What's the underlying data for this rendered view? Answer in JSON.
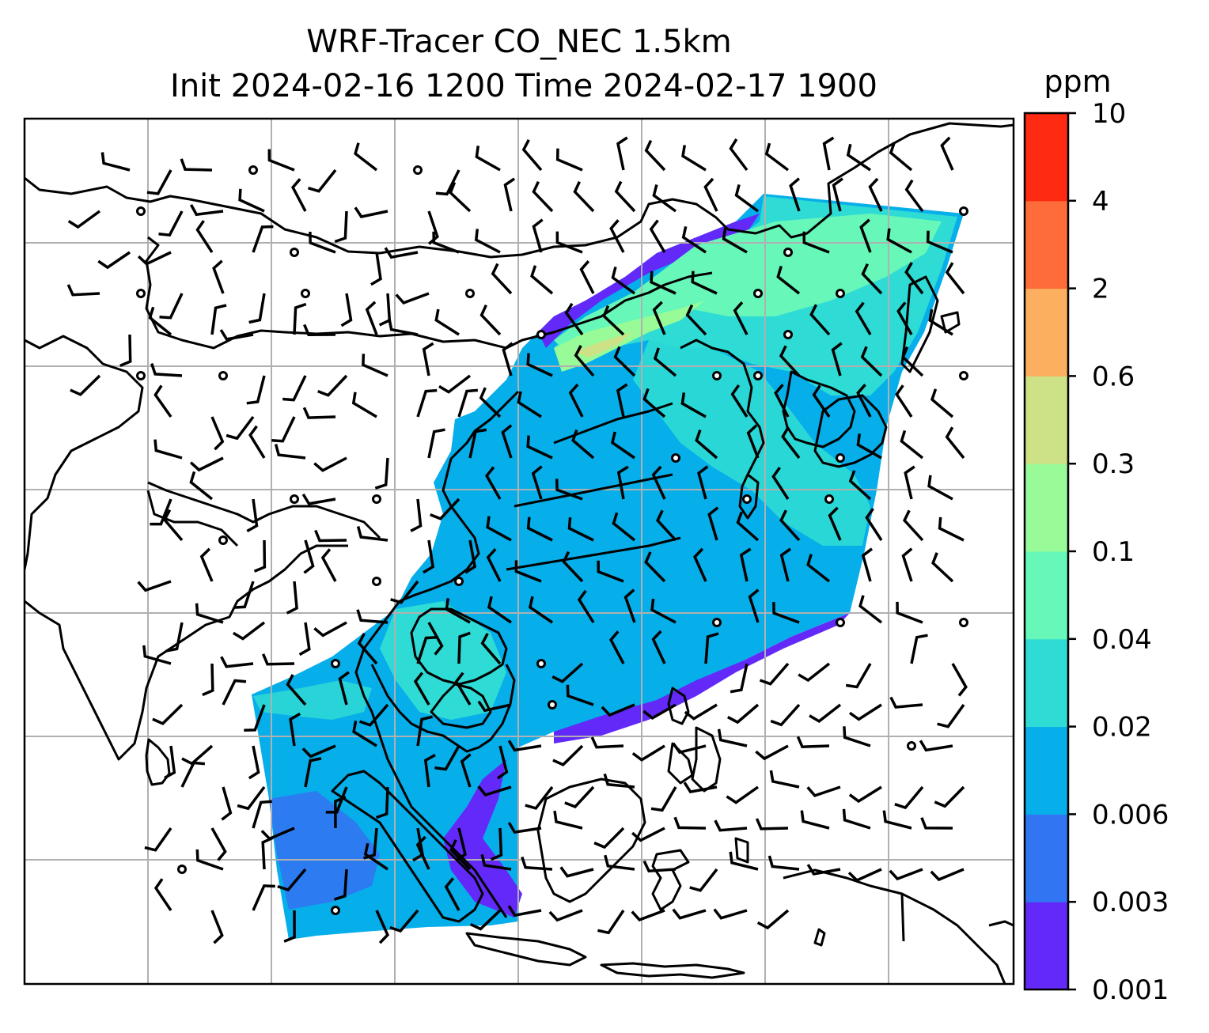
{
  "title": {
    "line1": "WRF-Tracer CO_NEC 1.5km",
    "line2": "Init 2024-02-16 1200 Time 2024-02-17 1900"
  },
  "colorbar": {
    "unit": "ppm",
    "levels": [
      "0.001",
      "0.003",
      "0.006",
      "0.02",
      "0.04",
      "0.1",
      "0.3",
      "0.6",
      "2",
      "4",
      "10"
    ],
    "colors": [
      "#6329f9",
      "#3275f2",
      "#06aeea",
      "#2fdbd5",
      "#66f7b9",
      "#98fb98",
      "#cde186",
      "#fbaf5f",
      "#fd6c39",
      "#ff2a12"
    ]
  },
  "colors": {
    "coastline": "#000000",
    "gridline": "#b0b0b0",
    "barb": "#000000"
  }
}
